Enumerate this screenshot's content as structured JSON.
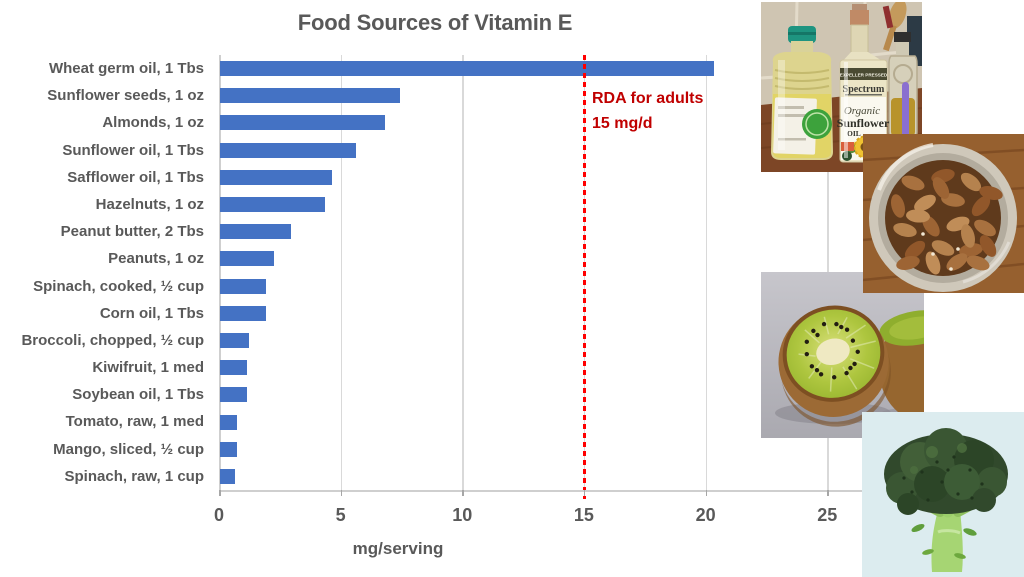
{
  "chart_data": {
    "type": "bar",
    "orientation": "horizontal",
    "title": "Food Sources of Vitamin E",
    "xlabel": "mg/serving",
    "categories": [
      "Wheat germ oil, 1 Tbs",
      "Sunflower seeds, 1 oz",
      "Almonds, 1 oz",
      "Sunflower oil, 1 Tbs",
      "Safflower oil, 1 Tbs",
      "Hazelnuts, 1 oz",
      "Peanut butter, 2 Tbs",
      "Peanuts, 1 oz",
      "Spinach, cooked, ½ cup",
      "Corn oil, 1 Tbs",
      "Broccoli, chopped, ½ cup",
      "Kiwifruit, 1 med",
      "Soybean oil, 1 Tbs",
      "Tomato, raw, 1 med",
      "Mango, sliced, ½ cup",
      "Spinach, raw, 1 cup"
    ],
    "values": [
      20.3,
      7.4,
      6.8,
      5.6,
      4.6,
      4.3,
      2.9,
      2.2,
      1.9,
      1.9,
      1.2,
      1.1,
      1.1,
      0.7,
      0.7,
      0.6
    ],
    "xlim": [
      0,
      27.6
    ],
    "xticks": [
      0,
      5,
      10,
      15,
      20,
      25
    ],
    "grid": true,
    "legend": false,
    "bar_color": "#4472C4",
    "gridline_color": "#d9d9d9",
    "text_color": "#595959",
    "annotation": {
      "text_line1": "RDA for adults",
      "text_line2": "15 mg/d",
      "x_value": 15,
      "line_color": "#FF0000",
      "text_color": "#C00000"
    }
  },
  "photos": {
    "oils": {
      "band_text": "EXPELLER PRESSED",
      "brand": "Spectrum",
      "label_line1": "Organic",
      "label_line2": "Sunflower",
      "label_line3": "OIL"
    }
  }
}
